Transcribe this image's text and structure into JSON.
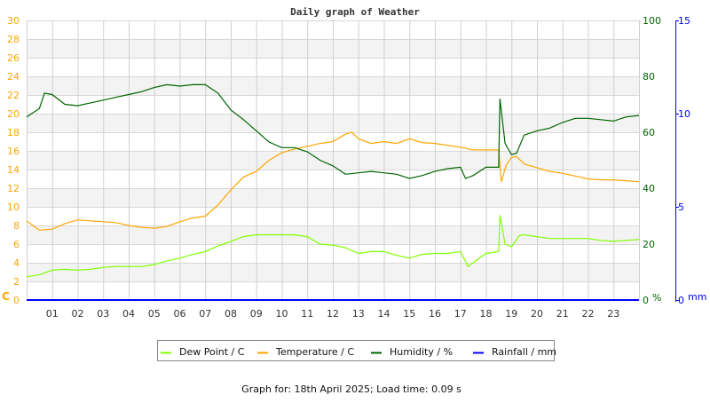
{
  "chart_data": {
    "type": "line",
    "title": "Daily graph of Weather",
    "footer": "Graph for: 18th April 2025; Load time: 0.09 s",
    "grid": true,
    "legend_position": "bottom",
    "x_axis": {
      "range": [
        0,
        24
      ],
      "unit": "hour",
      "tick_labels": [
        "01",
        "02",
        "03",
        "04",
        "05",
        "06",
        "07",
        "08",
        "09",
        "10",
        "11",
        "12",
        "13",
        "14",
        "15",
        "16",
        "17",
        "18",
        "19",
        "20",
        "21",
        "22",
        "23"
      ]
    },
    "y_axes": {
      "left": {
        "label": "C",
        "range": [
          0,
          30
        ],
        "ticks": [
          0,
          2,
          4,
          6,
          8,
          10,
          12,
          14,
          16,
          18,
          20,
          22,
          24,
          26,
          28,
          30
        ],
        "color": "#ffa500"
      },
      "right_humidity": {
        "label": "%",
        "range": [
          0,
          100
        ],
        "ticks": [
          0,
          20,
          40,
          60,
          80,
          100
        ],
        "color": "#006400"
      },
      "right_rain": {
        "label": "mm",
        "range": [
          0,
          15
        ],
        "ticks": [
          0,
          5,
          10,
          15
        ],
        "color": "#0000ff"
      }
    },
    "series": [
      {
        "name": "Dew Point / C",
        "axis": "left",
        "color": "#80ff00",
        "x": [
          0,
          0.5,
          1,
          1.5,
          2,
          2.5,
          3,
          3.5,
          4,
          4.5,
          5,
          5.5,
          6,
          6.5,
          7,
          7.5,
          8,
          8.5,
          9,
          9.5,
          10,
          10.5,
          11,
          11.5,
          12,
          12.5,
          13,
          13.5,
          14,
          14.5,
          15,
          15.5,
          16,
          16.5,
          17,
          17.3,
          17.5,
          18,
          18.5,
          18.55,
          18.75,
          19,
          19.3,
          19.5,
          20,
          20.5,
          21,
          21.5,
          22,
          22.5,
          23,
          23.5,
          24
        ],
        "y": [
          2.5,
          2.7,
          3.2,
          3.3,
          3.2,
          3.3,
          3.5,
          3.6,
          3.6,
          3.6,
          3.8,
          4.2,
          4.5,
          4.9,
          5.2,
          5.8,
          6.3,
          6.8,
          7.0,
          7.0,
          7.0,
          7.0,
          6.8,
          6.0,
          5.9,
          5.6,
          5.0,
          5.2,
          5.2,
          4.8,
          4.5,
          4.9,
          5.0,
          5.0,
          5.2,
          3.6,
          4.0,
          5.0,
          5.2,
          9.1,
          6.0,
          5.7,
          6.9,
          7.0,
          6.8,
          6.6,
          6.6,
          6.6,
          6.6,
          6.4,
          6.3,
          6.4,
          6.5
        ]
      },
      {
        "name": "Temperature / C",
        "axis": "left",
        "color": "#ffa500",
        "x": [
          0,
          0.5,
          1,
          1.5,
          2,
          2.5,
          3,
          3.5,
          4,
          4.5,
          5,
          5.5,
          6,
          6.5,
          7,
          7.5,
          8,
          8.5,
          9,
          9.5,
          10,
          10.5,
          11,
          11.5,
          12,
          12.5,
          12.75,
          13,
          13.5,
          14,
          14.5,
          15,
          15.5,
          16,
          16.5,
          17,
          17.5,
          18,
          18.5,
          18.6,
          18.8,
          19,
          19.2,
          19.5,
          20,
          20.5,
          21,
          21.5,
          22,
          22.5,
          23,
          23.5,
          24
        ],
        "y": [
          8.5,
          7.5,
          7.6,
          8.2,
          8.6,
          8.5,
          8.4,
          8.3,
          8.0,
          7.8,
          7.7,
          7.9,
          8.4,
          8.8,
          9.0,
          10.2,
          11.8,
          13.2,
          13.8,
          15.0,
          15.8,
          16.2,
          16.5,
          16.8,
          17.0,
          17.8,
          18.0,
          17.3,
          16.8,
          17.0,
          16.8,
          17.3,
          16.9,
          16.8,
          16.6,
          16.4,
          16.1,
          16.1,
          16.1,
          12.7,
          14.5,
          15.3,
          15.4,
          14.6,
          14.2,
          13.8,
          13.6,
          13.3,
          13.0,
          12.9,
          12.9,
          12.8,
          12.7
        ]
      },
      {
        "name": "Humidity / %",
        "axis": "right_humidity",
        "color": "#006400",
        "x": [
          0,
          0.5,
          0.7,
          1,
          1.5,
          2,
          2.5,
          3,
          3.5,
          4,
          4.5,
          5,
          5.5,
          6,
          6.5,
          7,
          7.5,
          8,
          8.5,
          9,
          9.5,
          10,
          10.5,
          11,
          11.5,
          12,
          12.5,
          13,
          13.5,
          14,
          14.5,
          15,
          15.5,
          16,
          16.5,
          17,
          17.2,
          17.5,
          18,
          18.5,
          18.55,
          18.75,
          19,
          19.2,
          19.5,
          20,
          20.5,
          21,
          21.5,
          22,
          22.5,
          23,
          23.5,
          24
        ],
        "y": [
          65.5,
          68.5,
          74,
          73.5,
          70,
          69.5,
          70.5,
          71.5,
          72.5,
          73.5,
          74.5,
          76,
          77,
          76.5,
          77,
          77,
          74,
          68,
          64.5,
          60.5,
          56.5,
          54.5,
          54.5,
          53,
          50,
          48,
          45,
          45.5,
          46,
          45.5,
          45,
          43.5,
          44.5,
          46,
          47,
          47.5,
          43.5,
          44.5,
          47.5,
          47.5,
          72,
          56,
          52,
          52.5,
          59,
          60.5,
          61.5,
          63.5,
          65,
          65,
          64.5,
          64,
          65.5,
          66
        ]
      },
      {
        "name": "Rainfall / mm",
        "axis": "right_rain",
        "color": "#0000ff",
        "x": [
          0,
          24
        ],
        "y": [
          0,
          0
        ]
      }
    ]
  }
}
